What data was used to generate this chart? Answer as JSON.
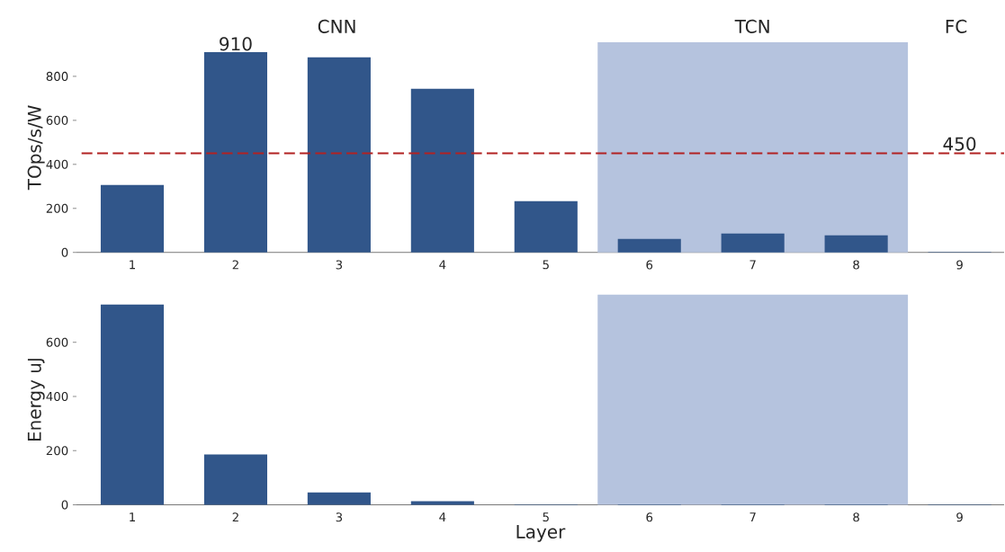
{
  "chart_data": [
    {
      "type": "bar",
      "ylabel": "TOps/s/W",
      "x": [
        1,
        2,
        3,
        4,
        5,
        6,
        7,
        8,
        9
      ],
      "xlim": [
        0.46,
        9.43
      ],
      "xticks": [
        1,
        2,
        3,
        4,
        5,
        6,
        7,
        8,
        9
      ],
      "values": [
        306,
        910,
        886,
        743,
        233,
        61,
        86,
        78,
        2
      ],
      "color": "#31568a",
      "value_labels": [
        null,
        "910",
        null,
        null,
        null,
        null,
        null,
        null,
        null
      ],
      "ylim": [
        0,
        955
      ],
      "yticks": [
        0,
        200,
        400,
        600,
        800
      ],
      "ref_lines": [
        {
          "axis": "y",
          "value": 450,
          "label": "450",
          "color": "#b22222",
          "line_style": "dashed"
        }
      ],
      "bands": [
        {
          "axis": "x",
          "from": 5.5,
          "to": 8.5,
          "color": "#b5c3de"
        }
      ],
      "annotations": [
        "CNN",
        "TCN",
        "FC"
      ]
    },
    {
      "type": "bar",
      "xlabel": "Layer",
      "ylabel": "Energy uJ",
      "x": [
        1,
        2,
        3,
        4,
        5,
        6,
        7,
        8,
        9
      ],
      "xlim": [
        0.46,
        9.43
      ],
      "xticks": [
        1,
        2,
        3,
        4,
        5,
        6,
        7,
        8,
        9
      ],
      "values": [
        739,
        186,
        46,
        13,
        2,
        2,
        2,
        2,
        2
      ],
      "color": "#31568a",
      "ylim": [
        0,
        776
      ],
      "yticks": [
        0,
        200,
        400,
        600
      ],
      "bands": [
        {
          "axis": "x",
          "from": 5.5,
          "to": 8.5,
          "color": "#b5c3de"
        }
      ]
    }
  ]
}
